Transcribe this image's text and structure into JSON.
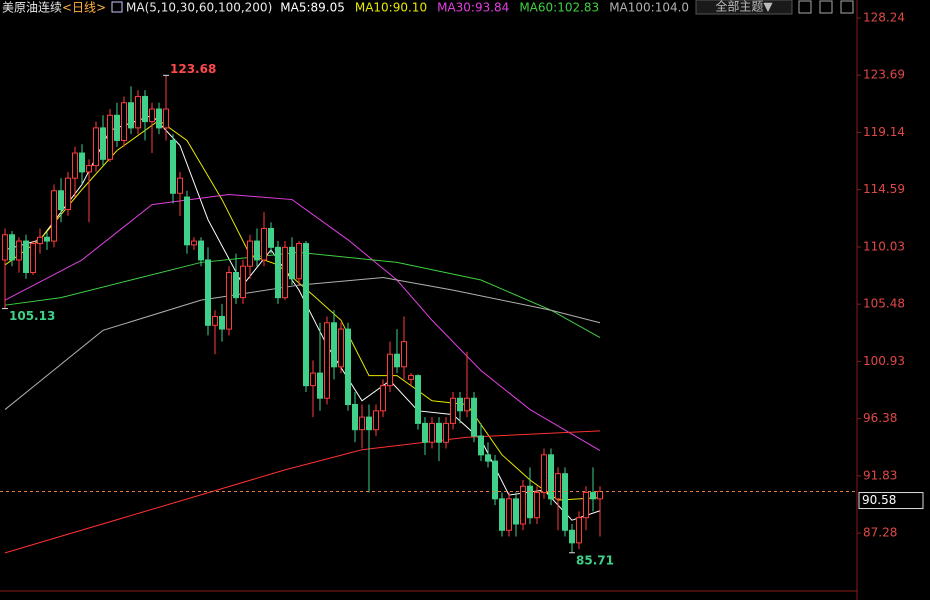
{
  "chart_data": {
    "type": "candlestick",
    "title": "美原油连续",
    "period": "<日线>",
    "indicator": "MA(5,10,30,60,100,200)",
    "theme_menu": "全部主题▼",
    "up_color": "#ff3c3c",
    "down_color": "#3fd18a",
    "ylim": [
      82.75,
      129.67
    ],
    "yticks": [
      128.24,
      123.69,
      119.14,
      114.59,
      110.03,
      105.48,
      100.93,
      96.38,
      91.83,
      87.28
    ],
    "open": [
      109,
      111,
      109,
      110.5,
      108,
      110.3,
      110.8,
      110.5,
      114.5,
      113,
      115.5,
      117.5,
      116,
      116.5,
      119.5,
      117,
      120.5,
      118.5,
      121.5,
      119.5,
      122,
      120,
      121,
      119.5,
      118.5,
      114.3,
      114,
      110.2,
      110.5,
      109,
      103.8,
      104.5,
      103.5,
      108,
      106,
      108.5,
      110.5,
      109,
      111.5,
      110,
      106,
      110,
      107.5,
      110.3,
      99,
      100,
      98,
      104,
      100.5,
      103.5,
      97.5,
      95.5,
      96.5,
      95.5,
      97,
      99,
      101.5,
      100.5,
      99.5,
      99.8,
      96,
      94.5,
      96,
      94.5,
      96,
      98,
      97,
      98,
      95,
      93.5,
      93,
      90,
      87.5,
      90,
      88,
      91,
      88.5,
      90.5,
      93.5,
      90,
      92,
      87.5,
      86.5,
      88.5,
      90.5,
      90
    ],
    "high": [
      111.5,
      111.3,
      110.8,
      111,
      110.5,
      111.5,
      111.2,
      115,
      115.5,
      116,
      118,
      118.2,
      117,
      120,
      120.5,
      121,
      121.5,
      122,
      122.8,
      122.5,
      122.5,
      121.5,
      121.5,
      123.68,
      119,
      116,
      114.5,
      110.8,
      110.8,
      110,
      105,
      105.5,
      108.5,
      109.5,
      109,
      111,
      111.5,
      112.8,
      112,
      110.5,
      110.5,
      110.8,
      110.5,
      110.5,
      101,
      104,
      104.5,
      105,
      104,
      104,
      98.5,
      97.5,
      97.5,
      97.5,
      99.5,
      102.5,
      103.5,
      104.5,
      100,
      99.9,
      96.5,
      96.5,
      96.5,
      96.5,
      98.5,
      98.5,
      101.7,
      98.5,
      96,
      94.5,
      93.5,
      90.5,
      90.5,
      90.5,
      91.5,
      92.5,
      91,
      94,
      94,
      92.5,
      92.5,
      88,
      89,
      91,
      92.5,
      91
    ],
    "low": [
      105.13,
      108.5,
      108,
      107.5,
      107.8,
      109.5,
      109.8,
      110,
      112,
      112.5,
      114,
      115,
      112,
      116,
      116.5,
      116.8,
      118,
      118,
      119,
      119,
      118.5,
      117.5,
      119,
      118.5,
      113.5,
      112.5,
      109.5,
      109.8,
      108.5,
      103,
      101.5,
      102.5,
      103,
      105.5,
      105.5,
      107.5,
      108.5,
      108.5,
      109.5,
      105.5,
      105.8,
      107,
      107,
      98.5,
      96.5,
      97,
      97.5,
      99.5,
      100,
      97,
      94.5,
      94,
      90.5,
      95,
      96.5,
      98.5,
      100,
      99.5,
      99,
      95.5,
      93.5,
      94,
      93,
      94,
      95.5,
      96,
      96.5,
      94.5,
      93,
      92.5,
      89.5,
      87,
      87,
      87,
      87.5,
      88,
      88,
      90,
      89.5,
      87.5,
      87,
      85.71,
      86,
      87.5,
      89,
      87
    ],
    "close": [
      111,
      109,
      110.5,
      108,
      110.3,
      110.8,
      110.5,
      114.5,
      113,
      115.5,
      117.5,
      116,
      116.5,
      119.5,
      117,
      120.5,
      118.5,
      121.5,
      119.5,
      122,
      120,
      121,
      119.5,
      121,
      114.3,
      115.5,
      110.2,
      110.5,
      109,
      103.8,
      104.5,
      103.5,
      108,
      106,
      108.5,
      110.5,
      109,
      111.5,
      110,
      106,
      110,
      107.5,
      110.3,
      99,
      100,
      98,
      104,
      100.5,
      103.5,
      97.5,
      95.5,
      96.5,
      95.5,
      97,
      99,
      101.5,
      100.5,
      102.5,
      99.8,
      96,
      94.5,
      96,
      94.5,
      96,
      98,
      97,
      98,
      95,
      93.5,
      93,
      90,
      87.5,
      90,
      88,
      91,
      88.5,
      90.5,
      93.5,
      90,
      92,
      87.5,
      86.5,
      88.5,
      90.5,
      90,
      90.58
    ],
    "series": [
      {
        "name": "MA5",
        "legend": "MA5:89.05",
        "color": "#ffffff",
        "x": [
          0,
          5,
          11,
          15,
          21,
          25,
          29,
          34,
          38,
          42,
          46,
          51,
          55,
          59,
          64,
          68,
          72,
          77,
          81,
          85
        ],
        "values": [
          109.8,
          110.6,
          115.0,
          119.3,
          120.5,
          118.1,
          112.2,
          107.0,
          109.8,
          106.6,
          102.2,
          97.8,
          99.4,
          97.0,
          96.7,
          94.7,
          90.3,
          90.7,
          88.3,
          89.05
        ]
      },
      {
        "name": "MA10",
        "legend": "MA10:90.10",
        "color": "#e8e800",
        "x": [
          0,
          5,
          11,
          16,
          22,
          26,
          31,
          35,
          39,
          44,
          48,
          52,
          56,
          61,
          66,
          71,
          75,
          79,
          85
        ],
        "values": [
          108.6,
          110.6,
          114.6,
          117.7,
          120.1,
          118.5,
          113.8,
          109.4,
          108.6,
          106.2,
          104.2,
          99.8,
          99.8,
          97.8,
          97.5,
          93.5,
          91.5,
          89.9,
          90.1
        ]
      },
      {
        "name": "MA30",
        "legend": "MA30:93.84",
        "color": "#e040e0",
        "x": [
          0,
          11,
          21,
          32,
          41,
          49,
          56,
          61,
          68,
          75,
          85
        ],
        "values": [
          105.8,
          109.0,
          113.4,
          114.2,
          113.8,
          110.6,
          107.4,
          104.2,
          100.2,
          97.1,
          93.84
        ]
      },
      {
        "name": "MA60",
        "legend": "MA60:102.83",
        "color": "#40d040",
        "x": [
          0,
          8,
          18,
          28,
          42,
          56,
          68,
          78,
          85
        ],
        "values": [
          105.4,
          106.0,
          107.4,
          108.8,
          109.6,
          108.8,
          107.4,
          105.0,
          102.83
        ]
      },
      {
        "name": "MA100",
        "legend": "MA100:104.0",
        "color": "#b0b0b0",
        "x": [
          0,
          14,
          28,
          42,
          54,
          64,
          78,
          85
        ],
        "values": [
          97.1,
          103.4,
          105.8,
          107.0,
          107.6,
          106.6,
          105.0,
          104.0
        ]
      },
      {
        "name": "MA200",
        "color": "#ff3030",
        "x": [
          0,
          20,
          40,
          51,
          66,
          85
        ],
        "values": [
          85.7,
          89.0,
          92.3,
          93.9,
          94.9,
          95.4
        ]
      }
    ],
    "annotations": [
      {
        "index": 23,
        "field": "high"
      },
      {
        "index": 0,
        "field": "low"
      },
      {
        "index": 81,
        "field": "low"
      }
    ]
  }
}
